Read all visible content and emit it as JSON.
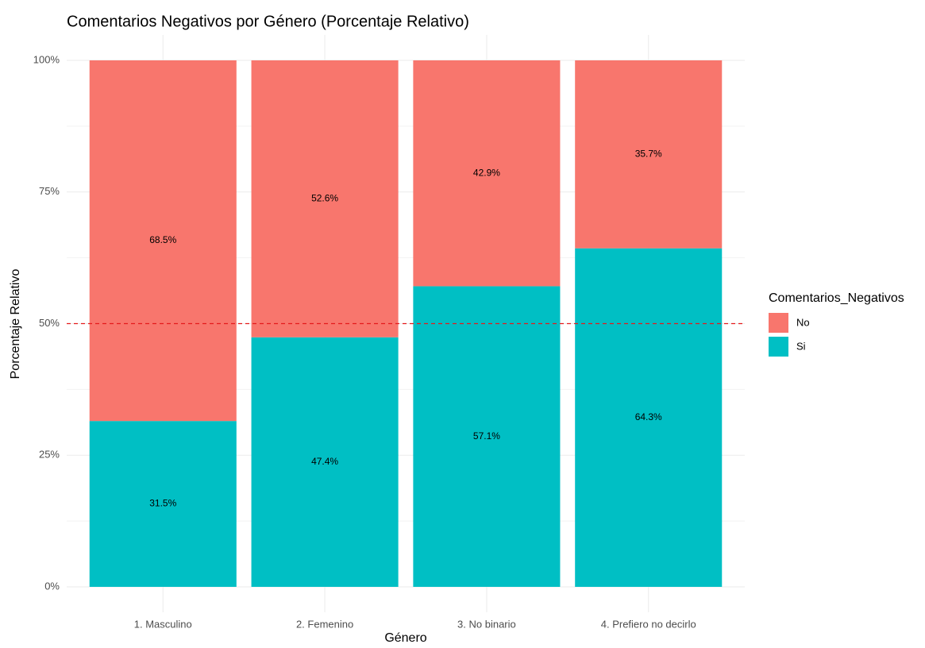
{
  "chart_data": {
    "type": "stacked_bar",
    "title": "Comentarios Negativos por Género (Porcentaje Relativo)",
    "x_label": "Género",
    "y_label": "Porcentaje Relativo",
    "legend_title": "Comentarios_Negativos",
    "legend_position": "right",
    "categories": [
      "1. Masculino",
      "2. Femenino",
      "3. No binario",
      "4. Prefiero no decirlo"
    ],
    "series": [
      {
        "name": "No",
        "color": "#f8766d",
        "values": [
          68.5,
          52.6,
          42.9,
          35.7
        ],
        "value_labels": [
          "68.5%",
          "52.6%",
          "42.9%",
          "35.7%"
        ]
      },
      {
        "name": "Si",
        "color": "#00bfc4",
        "values": [
          31.5,
          47.4,
          57.1,
          64.3
        ],
        "value_labels": [
          "31.5%",
          "47.4%",
          "57.1%",
          "64.3%"
        ]
      }
    ],
    "stack_order": [
      1,
      0
    ],
    "ylim": [
      0,
      100
    ],
    "yticks": [
      {
        "value": 0,
        "label": "0%"
      },
      {
        "value": 25,
        "label": "25%"
      },
      {
        "value": 50,
        "label": "50%"
      },
      {
        "value": 75,
        "label": "75%"
      },
      {
        "value": 100,
        "label": "100%"
      }
    ],
    "hline": 50,
    "hline_color": "#e41a1c",
    "grid": true
  }
}
